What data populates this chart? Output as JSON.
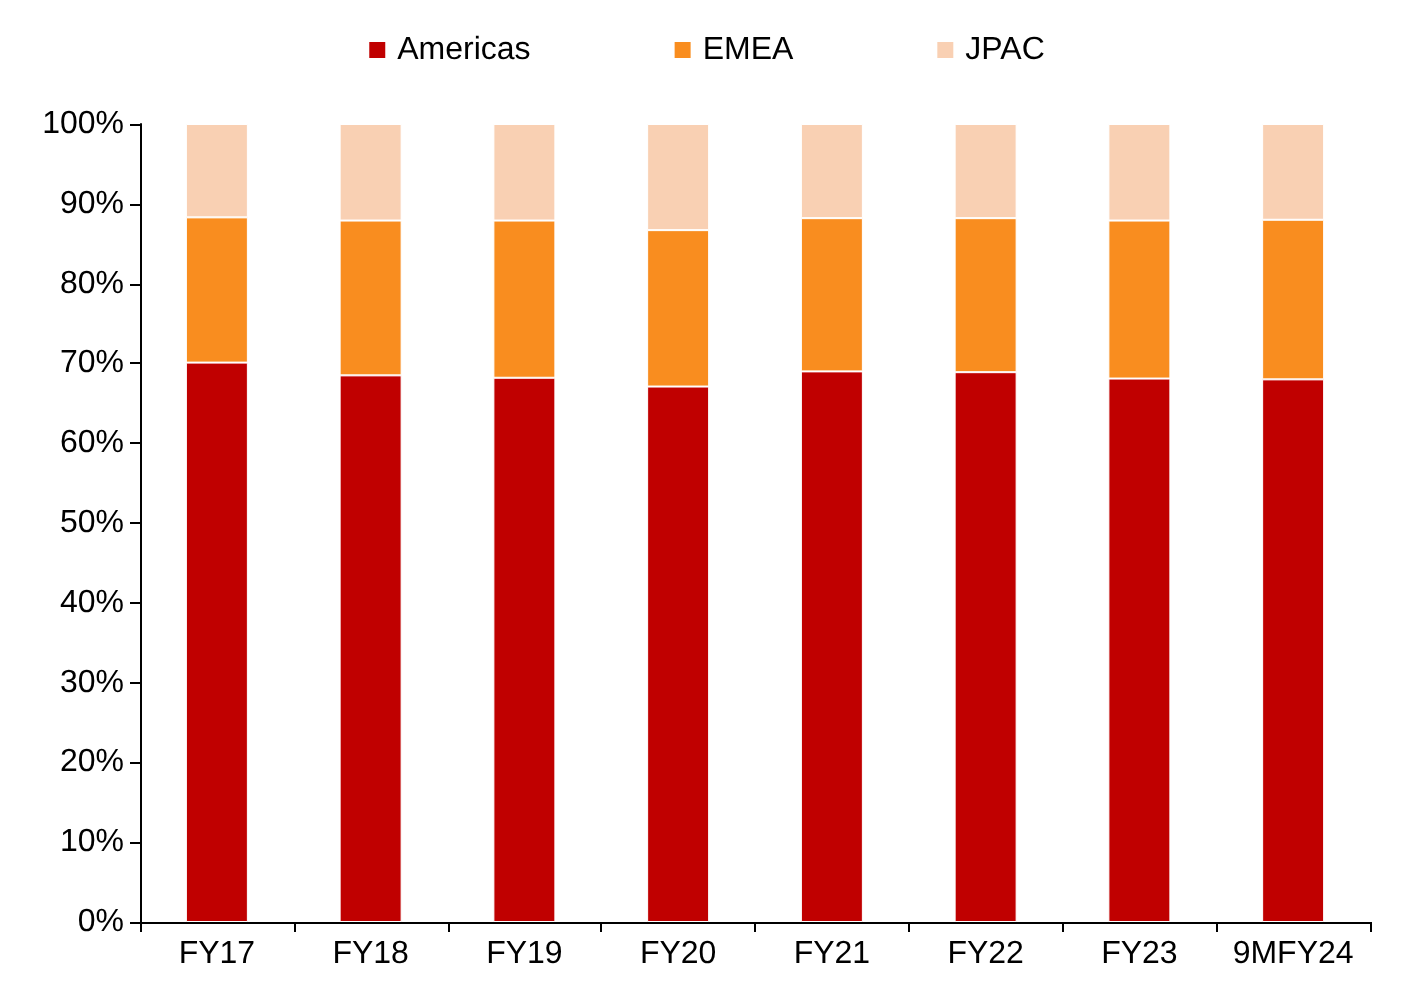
{
  "chart_data": {
    "type": "bar",
    "stacked": true,
    "categories": [
      "FY17",
      "FY18",
      "FY19",
      "FY20",
      "FY21",
      "FY22",
      "FY23",
      "9MFY24"
    ],
    "series": [
      {
        "name": "Americas",
        "color": "#c00000",
        "values": [
          70.1,
          68.5,
          68.2,
          67.1,
          69.0,
          68.9,
          68.1,
          68.0
        ]
      },
      {
        "name": "EMEA",
        "color": "#f98d1f",
        "values": [
          18.2,
          19.4,
          19.7,
          19.6,
          19.2,
          19.3,
          19.8,
          20.0
        ]
      },
      {
        "name": "JPAC",
        "color": "#f9d0b3",
        "values": [
          11.7,
          12.1,
          12.1,
          13.3,
          11.8,
          11.8,
          12.1,
          12.0
        ]
      }
    ],
    "ylim": [
      0,
      100
    ],
    "yticks": [
      {
        "value": 0,
        "label": "0%"
      },
      {
        "value": 10,
        "label": "10%"
      },
      {
        "value": 20,
        "label": "20%"
      },
      {
        "value": 30,
        "label": "30%"
      },
      {
        "value": 40,
        "label": "40%"
      },
      {
        "value": 50,
        "label": "50%"
      },
      {
        "value": 60,
        "label": "60%"
      },
      {
        "value": 70,
        "label": "70%"
      },
      {
        "value": 80,
        "label": "80%"
      },
      {
        "value": 90,
        "label": "90%"
      },
      {
        "value": 100,
        "label": "100%"
      }
    ],
    "grid": false,
    "legend": "top"
  }
}
